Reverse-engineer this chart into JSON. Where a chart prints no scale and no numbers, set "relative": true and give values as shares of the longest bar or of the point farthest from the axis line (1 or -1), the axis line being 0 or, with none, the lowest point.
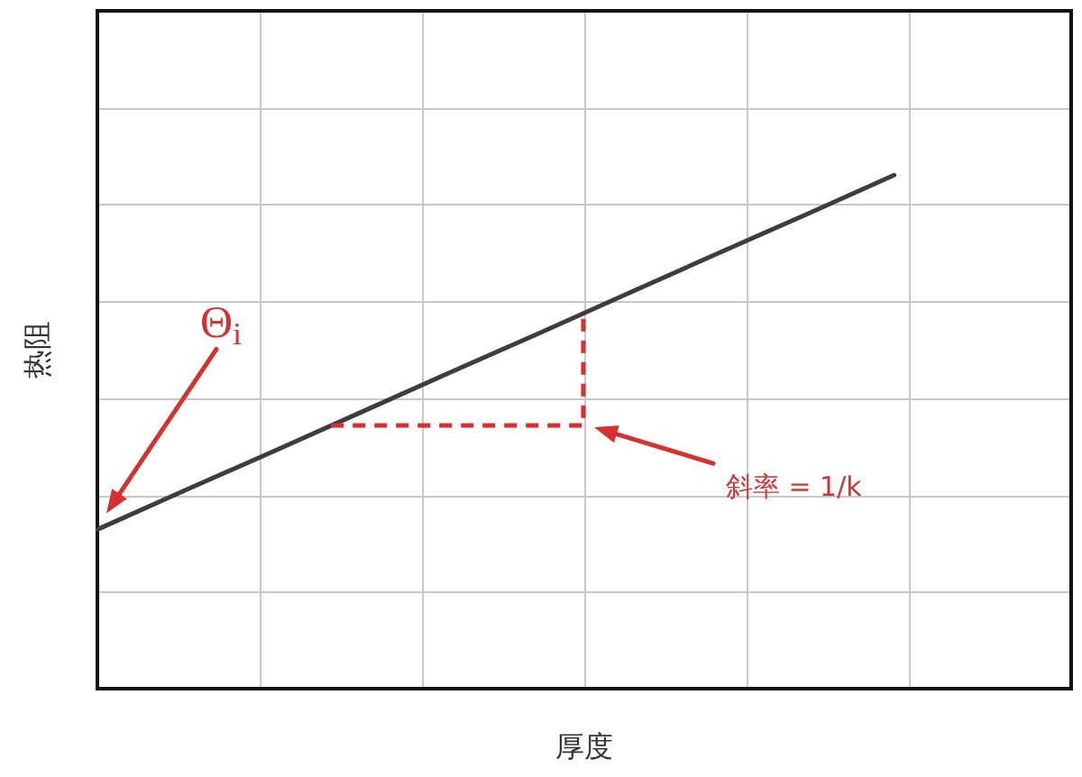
{
  "chart_data": {
    "type": "line",
    "xlabel": "厚度",
    "ylabel": "热阻",
    "categories": [
      null,
      null,
      null,
      null,
      null,
      null,
      null,
      null,
      null,
      null,
      null,
      null
    ],
    "values": [
      0.31,
      0.387,
      0.463,
      0.54,
      0.617,
      0.693,
      0.77,
      0.847,
      0.923,
      1,
      null,
      null
    ],
    "color": "#3d3d3d",
    "relative": true,
    "grid": true,
    "legend": false,
    "marker": "none",
    "line_style": "solid",
    "annotations": [
      "Θ$_{i}$",
      "斜率 = 1/k"
    ]
  }
}
